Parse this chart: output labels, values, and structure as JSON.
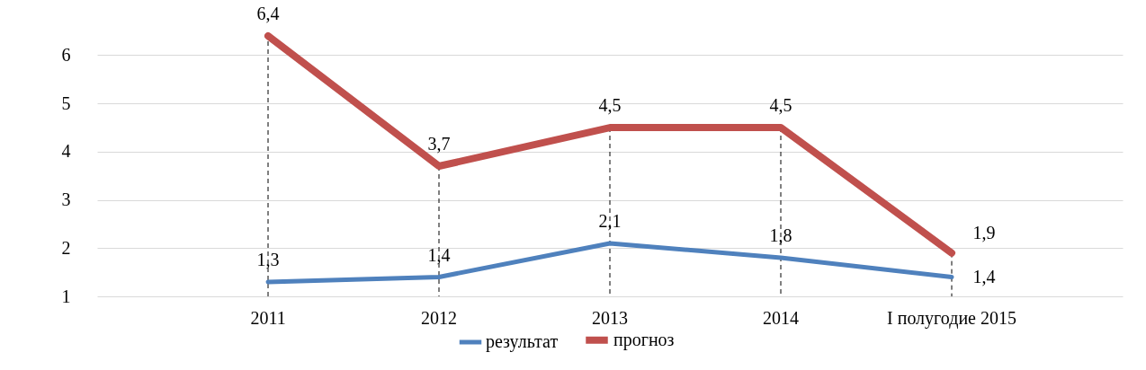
{
  "chart_data": {
    "type": "line",
    "categories": [
      "2011",
      "2012",
      "2013",
      "2014",
      "I полугодие  2015"
    ],
    "series": [
      {
        "name": "результат",
        "color": "#4f81bd",
        "values": [
          1.3,
          1.4,
          2.1,
          1.8,
          1.4
        ],
        "value_labels": [
          "1,3",
          "1,4",
          "2,1",
          "1,8",
          "1,4"
        ]
      },
      {
        "name": "прогноз",
        "color": "#c0504d",
        "values": [
          6.4,
          3.7,
          4.5,
          4.5,
          1.9
        ],
        "value_labels": [
          "6,4",
          "3,7",
          "4,5",
          "4,5",
          "1,9"
        ]
      }
    ],
    "ylim": [
      1,
      6.4
    ],
    "yticks": [
      1,
      2,
      3,
      4,
      5,
      6
    ],
    "ref_lines": [
      {
        "axis": "x",
        "value": "2011",
        "color": "#000000",
        "line_style": "dashed"
      }
    ],
    "grid": "y",
    "legend": "bottom",
    "marker": "none",
    "line_style": "solid"
  }
}
